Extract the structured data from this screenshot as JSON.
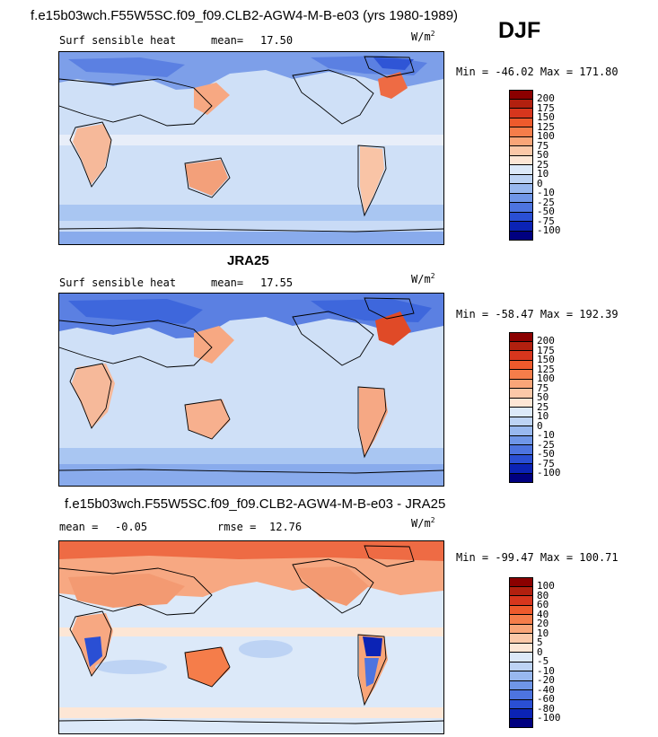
{
  "header": {
    "title": "f.e15b03wch.F55W5SC.f09_f09.CLB2-AGW4-M-B-e03 (yrs 1980-1989)",
    "season": "DJF"
  },
  "panels": [
    {
      "title": "",
      "variable": "Surf sensible heat",
      "stat_label": "mean=",
      "stat_value": "17.50",
      "stat2_label": "",
      "stat2_value": "",
      "units": "W/m",
      "units_sup": "2",
      "minmax": "Min = -46.02  Max = 171.80",
      "colorbar": {
        "labels": [
          "200",
          "175",
          "150",
          "125",
          "100",
          "75",
          "50",
          "25",
          "10",
          "0",
          "-10",
          "-25",
          "-50",
          "-75",
          "-100"
        ],
        "colors": [
          "#8b0000",
          "#b2200f",
          "#d7361d",
          "#ee5a2c",
          "#f57d4a",
          "#f9a578",
          "#fbc8a8",
          "#fde6d5",
          "#dce9f9",
          "#bdd3f4",
          "#98b8ef",
          "#6f96e8",
          "#4d74e0",
          "#2a4fd4",
          "#0b23b5",
          "#000080"
        ]
      }
    },
    {
      "title": "JRA25",
      "variable": "Surf sensible heat",
      "stat_label": "mean=",
      "stat_value": "17.55",
      "stat2_label": "",
      "stat2_value": "",
      "units": "W/m",
      "units_sup": "2",
      "minmax": "Min = -58.47  Max = 192.39",
      "colorbar": {
        "labels": [
          "200",
          "175",
          "150",
          "125",
          "100",
          "75",
          "50",
          "25",
          "10",
          "0",
          "-10",
          "-25",
          "-50",
          "-75",
          "-100"
        ],
        "colors": [
          "#8b0000",
          "#b2200f",
          "#d7361d",
          "#ee5a2c",
          "#f57d4a",
          "#f9a578",
          "#fbc8a8",
          "#fde6d5",
          "#dce9f9",
          "#bdd3f4",
          "#98b8ef",
          "#6f96e8",
          "#4d74e0",
          "#2a4fd4",
          "#0b23b5",
          "#000080"
        ]
      }
    },
    {
      "title": "f.e15b03wch.F55W5SC.f09_f09.CLB2-AGW4-M-B-e03 - JRA25",
      "variable": "",
      "stat_label": "mean =",
      "stat_value": "-0.05",
      "stat2_label": "rmse =",
      "stat2_value": "12.76",
      "units": "W/m",
      "units_sup": "2",
      "minmax": "Min = -99.47  Max = 100.71",
      "colorbar": {
        "labels": [
          "100",
          "80",
          "60",
          "40",
          "20",
          "10",
          "5",
          "0",
          "-5",
          "-10",
          "-20",
          "-40",
          "-60",
          "-80",
          "-100"
        ],
        "colors": [
          "#8b0000",
          "#b2200f",
          "#d7361d",
          "#ee5a2c",
          "#f57d4a",
          "#f9a578",
          "#fbc8a8",
          "#fde6d5",
          "#dce9f9",
          "#bdd3f4",
          "#98b8ef",
          "#6f96e8",
          "#4d74e0",
          "#2a4fd4",
          "#0b23b5",
          "#000080"
        ]
      }
    }
  ]
}
